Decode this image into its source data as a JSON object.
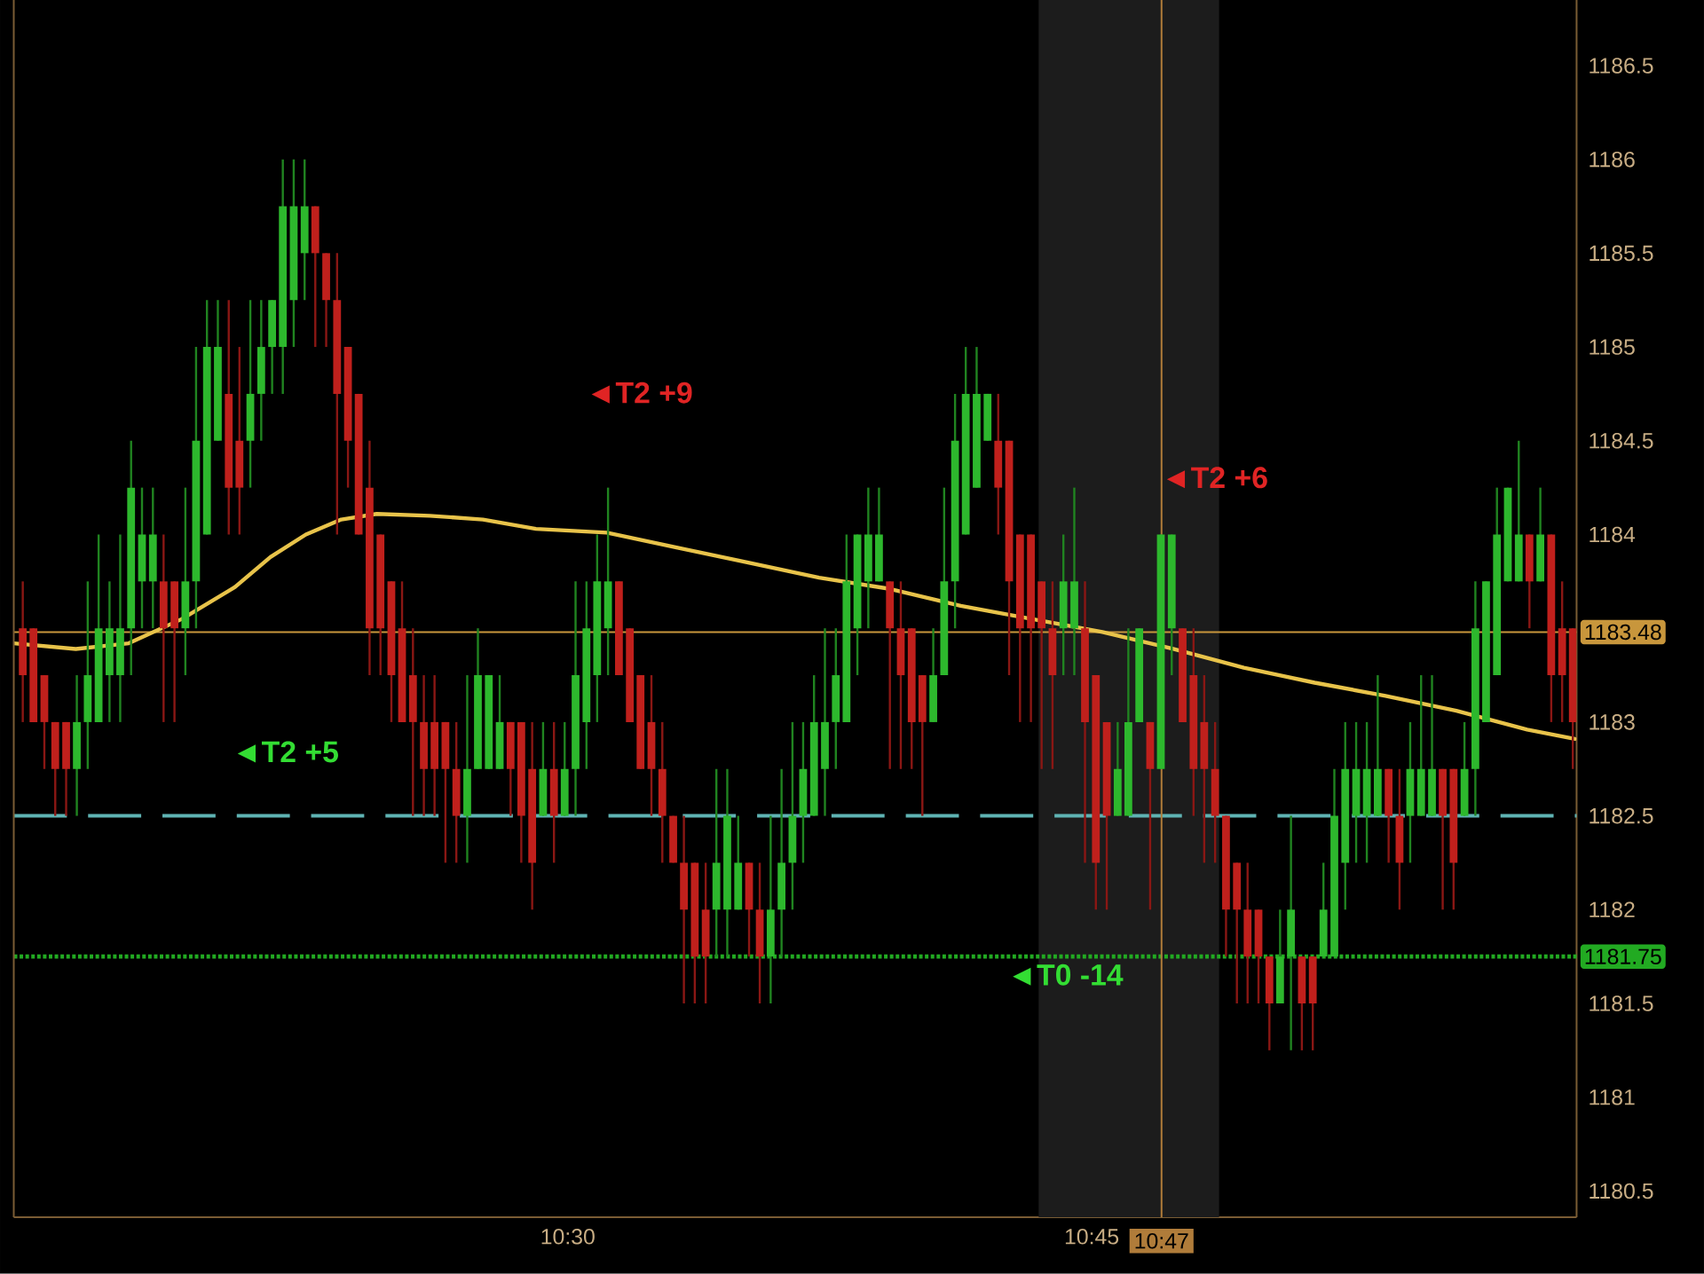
{
  "chart_data": {
    "type": "candlestick",
    "x": [
      10.2399,
      10.245,
      10.2502,
      10.2554,
      10.2606,
      10.2657,
      10.2709,
      10.2761,
      10.2813,
      10.2864,
      10.2916,
      10.2968,
      10.302,
      10.3071,
      10.3123,
      10.3175,
      10.3226,
      10.3278,
      10.333,
      10.3382,
      10.3433,
      10.3485,
      10.3537,
      10.3589,
      10.364,
      10.3692,
      10.3744,
      10.3795,
      10.3847,
      10.3899,
      10.3951,
      10.4002,
      10.4054,
      10.4106,
      10.4158,
      10.4209,
      10.4261,
      10.4313,
      10.4364,
      10.4416,
      10.4468,
      10.452,
      10.4571,
      10.4623,
      10.4675,
      10.4727,
      10.4778,
      10.483,
      10.4882,
      10.4934,
      10.4985,
      10.5037,
      10.5089,
      10.514,
      10.5192,
      10.5244,
      10.5296,
      10.5347,
      10.5399,
      10.5451,
      10.5503,
      10.5554,
      10.5606,
      10.5658,
      10.5709,
      10.5761,
      10.5813,
      10.5865,
      10.5916,
      10.5968,
      10.602,
      10.6072,
      10.6123,
      10.6175,
      10.6227,
      10.6279,
      10.633,
      10.6382,
      10.6434,
      10.6485,
      10.6537,
      10.6589,
      10.6641,
      10.6692,
      10.6744,
      10.6796,
      10.6848,
      10.6899,
      10.6951,
      10.7003,
      10.7054,
      10.7106,
      10.7158,
      10.721,
      10.7261,
      10.7313,
      10.7365,
      10.7417,
      10.7468,
      10.752,
      10.7572,
      10.7624,
      10.7675,
      10.7727,
      10.7779,
      10.783,
      10.7882,
      10.7934,
      10.7986,
      10.8037,
      10.8089,
      10.8141,
      10.8193,
      10.8244,
      10.8296,
      10.8348,
      10.8399,
      10.8451,
      10.8503,
      10.8555,
      10.8606,
      10.8658,
      10.871,
      10.8762,
      10.8813,
      10.8865,
      10.8917,
      10.8969,
      10.902,
      10.9072,
      10.9124,
      10.9175,
      10.9227,
      10.9279,
      10.9331,
      10.9382,
      10.9434,
      10.9486,
      10.9538,
      10.9589,
      10.9641,
      10.9693,
      10.9745,
      10.9796
    ],
    "ohlc": [
      [
        1183.5,
        1183.75,
        1183,
        1183.25
      ],
      [
        1183.5,
        1183.5,
        1183,
        1183
      ],
      [
        1183.25,
        1183.25,
        1182.75,
        1183
      ],
      [
        1183,
        1183,
        1182.5,
        1182.75
      ],
      [
        1183,
        1183,
        1182.5,
        1182.75
      ],
      [
        1182.75,
        1183.25,
        1182.5,
        1183
      ],
      [
        1183,
        1183.75,
        1182.75,
        1183.25
      ],
      [
        1183,
        1184,
        1183,
        1183.5
      ],
      [
        1183.25,
        1183.75,
        1183,
        1183.5
      ],
      [
        1183.25,
        1184,
        1183,
        1183.5
      ],
      [
        1183.5,
        1184.5,
        1183.25,
        1184.25
      ],
      [
        1183.75,
        1184.25,
        1183.5,
        1184
      ],
      [
        1183.75,
        1184.25,
        1183.5,
        1184
      ],
      [
        1183.75,
        1184,
        1183,
        1183.5
      ],
      [
        1183.75,
        1183.75,
        1183,
        1183.5
      ],
      [
        1183.5,
        1184.25,
        1183.25,
        1183.75
      ],
      [
        1183.75,
        1185,
        1183.5,
        1184.5
      ],
      [
        1184,
        1185.25,
        1184,
        1185
      ],
      [
        1184.5,
        1185.25,
        1184.5,
        1185
      ],
      [
        1184.75,
        1185.25,
        1184,
        1184.25
      ],
      [
        1184.5,
        1185,
        1184,
        1184.25
      ],
      [
        1184.5,
        1185.25,
        1184.25,
        1184.75
      ],
      [
        1184.75,
        1185.25,
        1184.5,
        1185
      ],
      [
        1185,
        1185.25,
        1184.75,
        1185.25
      ],
      [
        1185,
        1186,
        1184.75,
        1185.75
      ],
      [
        1185.25,
        1186,
        1185,
        1185.75
      ],
      [
        1185.5,
        1186,
        1185.25,
        1185.75
      ],
      [
        1185.75,
        1185.75,
        1185,
        1185.5
      ],
      [
        1185.5,
        1185.5,
        1185,
        1185.25
      ],
      [
        1185.25,
        1185.5,
        1184,
        1184.75
      ],
      [
        1185,
        1185,
        1184.25,
        1184.5
      ],
      [
        1184.75,
        1184.75,
        1184,
        1184
      ],
      [
        1184.25,
        1184.5,
        1183.25,
        1183.5
      ],
      [
        1184,
        1184,
        1183.25,
        1183.5
      ],
      [
        1183.75,
        1183.75,
        1183,
        1183.25
      ],
      [
        1183.5,
        1183.75,
        1183,
        1183
      ],
      [
        1183.25,
        1183.5,
        1182.5,
        1183
      ],
      [
        1183,
        1183.25,
        1182.5,
        1182.75
      ],
      [
        1183,
        1183.25,
        1182.5,
        1182.75
      ],
      [
        1183,
        1183,
        1182.25,
        1182.75
      ],
      [
        1182.75,
        1183,
        1182.25,
        1182.5
      ],
      [
        1182.5,
        1183.25,
        1182.25,
        1182.75
      ],
      [
        1182.75,
        1183.5,
        1182.75,
        1183.25
      ],
      [
        1182.75,
        1183.25,
        1182.75,
        1183.25
      ],
      [
        1182.75,
        1183.25,
        1182.75,
        1183
      ],
      [
        1183,
        1183,
        1182.5,
        1182.75
      ],
      [
        1183,
        1183,
        1182.25,
        1182.5
      ],
      [
        1182.75,
        1183,
        1182,
        1182.25
      ],
      [
        1182.5,
        1183,
        1182.5,
        1182.75
      ],
      [
        1182.75,
        1183,
        1182.25,
        1182.5
      ],
      [
        1182.5,
        1183,
        1182.5,
        1182.75
      ],
      [
        1182.75,
        1183.75,
        1182.5,
        1183.25
      ],
      [
        1183,
        1183.75,
        1182.75,
        1183.5
      ],
      [
        1183.25,
        1184,
        1183,
        1183.75
      ],
      [
        1183.5,
        1184.25,
        1183.25,
        1183.75
      ],
      [
        1183.75,
        1183.75,
        1183.25,
        1183.25
      ],
      [
        1183.5,
        1183.5,
        1183,
        1183
      ],
      [
        1183.25,
        1183.25,
        1182.75,
        1182.75
      ],
      [
        1183,
        1183.25,
        1182.5,
        1182.75
      ],
      [
        1182.75,
        1183,
        1182.25,
        1182.5
      ],
      [
        1182.5,
        1182.5,
        1182.25,
        1182.25
      ],
      [
        1182.25,
        1182.5,
        1181.5,
        1182
      ],
      [
        1182.25,
        1182.25,
        1181.5,
        1181.75
      ],
      [
        1182,
        1182.25,
        1181.5,
        1181.75
      ],
      [
        1182,
        1182.75,
        1181.75,
        1182.25
      ],
      [
        1182,
        1182.75,
        1181.75,
        1182.5
      ],
      [
        1182,
        1182.5,
        1182,
        1182.25
      ],
      [
        1182.25,
        1182.25,
        1181.75,
        1182
      ],
      [
        1182,
        1182.25,
        1181.5,
        1181.75
      ],
      [
        1181.75,
        1182.5,
        1181.5,
        1182
      ],
      [
        1182,
        1182.75,
        1181.75,
        1182.25
      ],
      [
        1182.25,
        1183,
        1182,
        1182.5
      ],
      [
        1182.5,
        1183,
        1182.25,
        1182.75
      ],
      [
        1182.5,
        1183.25,
        1182.5,
        1183
      ],
      [
        1182.75,
        1183.5,
        1182.5,
        1183
      ],
      [
        1183,
        1183.5,
        1182.75,
        1183.25
      ],
      [
        1183,
        1184,
        1183,
        1183.75
      ],
      [
        1183.5,
        1184,
        1183.25,
        1184
      ],
      [
        1183.75,
        1184.25,
        1183.5,
        1184
      ],
      [
        1183.75,
        1184.25,
        1183.75,
        1184
      ],
      [
        1183.75,
        1183.75,
        1182.75,
        1183.5
      ],
      [
        1183.5,
        1183.75,
        1182.75,
        1183.25
      ],
      [
        1183.5,
        1183.5,
        1182.75,
        1183
      ],
      [
        1183.25,
        1183.25,
        1182.5,
        1183
      ],
      [
        1183,
        1183.5,
        1183,
        1183.25
      ],
      [
        1183.25,
        1184.25,
        1183.25,
        1183.75
      ],
      [
        1183.75,
        1184.75,
        1183.5,
        1184.5
      ],
      [
        1184,
        1185,
        1184,
        1184.75
      ],
      [
        1184.25,
        1185,
        1184.25,
        1184.75
      ],
      [
        1184.5,
        1184.75,
        1184.5,
        1184.75
      ],
      [
        1184.5,
        1184.75,
        1184,
        1184.25
      ],
      [
        1184.5,
        1184.5,
        1183.25,
        1183.75
      ],
      [
        1184,
        1184,
        1183,
        1183.5
      ],
      [
        1184,
        1184,
        1183,
        1183.5
      ],
      [
        1183.75,
        1183.75,
        1182.75,
        1183.5
      ],
      [
        1183.5,
        1183.75,
        1182.75,
        1183.25
      ],
      [
        1183.5,
        1184,
        1183.25,
        1183.75
      ],
      [
        1183.5,
        1184.25,
        1183.25,
        1183.75
      ],
      [
        1183.5,
        1183.75,
        1182.25,
        1183
      ],
      [
        1183.25,
        1183.25,
        1182,
        1182.25
      ],
      [
        1183,
        1183,
        1182,
        1182.5
      ],
      [
        1182.5,
        1183,
        1182.5,
        1182.75
      ],
      [
        1182.5,
        1183.5,
        1182.5,
        1183
      ],
      [
        1183,
        1183.5,
        1183,
        1183.5
      ],
      [
        1183,
        1183,
        1182,
        1182.75
      ],
      [
        1182.75,
        1184,
        1182.75,
        1184
      ],
      [
        1183.5,
        1184,
        1183.25,
        1184
      ],
      [
        1183.5,
        1183.5,
        1183,
        1183
      ],
      [
        1183.25,
        1183.5,
        1182.5,
        1182.75
      ],
      [
        1183,
        1183.25,
        1182.25,
        1182.75
      ],
      [
        1182.75,
        1183,
        1182.25,
        1182.5
      ],
      [
        1182.5,
        1182.5,
        1181.75,
        1182
      ],
      [
        1182.25,
        1182.25,
        1181.5,
        1182
      ],
      [
        1182,
        1182.25,
        1181.5,
        1181.75
      ],
      [
        1182,
        1182,
        1181.5,
        1181.75
      ],
      [
        1181.75,
        1181.75,
        1181.25,
        1181.5
      ],
      [
        1181.5,
        1182,
        1181.5,
        1181.75
      ],
      [
        1181.75,
        1182.5,
        1181.25,
        1182
      ],
      [
        1181.75,
        1181.75,
        1181.25,
        1181.5
      ],
      [
        1181.75,
        1181.75,
        1181.25,
        1181.5
      ],
      [
        1181.75,
        1182.25,
        1181.75,
        1182
      ],
      [
        1181.75,
        1182.75,
        1181.75,
        1182.5
      ],
      [
        1182.25,
        1183,
        1182,
        1182.75
      ],
      [
        1182.5,
        1183,
        1182.25,
        1182.75
      ],
      [
        1182.5,
        1183,
        1182.25,
        1182.75
      ],
      [
        1182.5,
        1183.25,
        1182.5,
        1182.75
      ],
      [
        1182.75,
        1182.75,
        1182.25,
        1182.5
      ],
      [
        1182.5,
        1182.75,
        1182,
        1182.25
      ],
      [
        1182.5,
        1183,
        1182.25,
        1182.75
      ],
      [
        1182.5,
        1183.25,
        1182.5,
        1182.75
      ],
      [
        1182.5,
        1183.25,
        1182.5,
        1182.75
      ],
      [
        1182.75,
        1182.75,
        1182,
        1182.5
      ],
      [
        1182.75,
        1182.75,
        1182,
        1182.25
      ],
      [
        1182.5,
        1183,
        1182.5,
        1182.75
      ],
      [
        1182.75,
        1183.75,
        1182.5,
        1183.5
      ],
      [
        1183,
        1183.75,
        1183,
        1183.75
      ],
      [
        1183.25,
        1184.25,
        1183.25,
        1184
      ],
      [
        1183.75,
        1184.25,
        1183.75,
        1184.25
      ],
      [
        1183.75,
        1184.5,
        1183.75,
        1184
      ],
      [
        1184,
        1184,
        1183.5,
        1183.75
      ],
      [
        1183.75,
        1184.25,
        1183.75,
        1184
      ],
      [
        1184,
        1184,
        1183,
        1183.25
      ],
      [
        1183.5,
        1183.75,
        1183,
        1183.25
      ],
      [
        1183.5,
        1183.5,
        1182.75,
        1183
      ]
    ],
    "colors": [
      "#c0201c",
      "#c0201c",
      "#c0201c",
      "#c0201c",
      "#c0201c",
      "#2db82d",
      "#2db82d",
      "#2db82d",
      "#2db82d",
      "#2db82d",
      "#2db82d",
      "#2db82d",
      "#2db82d",
      "#c0201c",
      "#c0201c",
      "#2db82d",
      "#2db82d",
      "#2db82d",
      "#2db82d",
      "#c0201c",
      "#c0201c",
      "#2db82d",
      "#2db82d",
      "#2db82d",
      "#2db82d",
      "#2db82d",
      "#2db82d",
      "#c0201c",
      "#c0201c",
      "#c0201c",
      "#c0201c",
      "#c0201c",
      "#c0201c",
      "#c0201c",
      "#c0201c",
      "#c0201c",
      "#c0201c",
      "#c0201c",
      "#c0201c",
      "#c0201c",
      "#c0201c",
      "#2db82d",
      "#2db82d",
      "#2db82d",
      "#2db82d",
      "#c0201c",
      "#c0201c",
      "#c0201c",
      "#2db82d",
      "#c0201c",
      "#2db82d",
      "#2db82d",
      "#2db82d",
      "#2db82d",
      "#2db82d",
      "#c0201c",
      "#c0201c",
      "#c0201c",
      "#c0201c",
      "#c0201c",
      "#c0201c",
      "#c0201c",
      "#c0201c",
      "#c0201c",
      "#2db82d",
      "#2db82d",
      "#2db82d",
      "#c0201c",
      "#c0201c",
      "#2db82d",
      "#2db82d",
      "#2db82d",
      "#2db82d",
      "#2db82d",
      "#2db82d",
      "#2db82d",
      "#2db82d",
      "#2db82d",
      "#2db82d",
      "#2db82d",
      "#c0201c",
      "#c0201c",
      "#c0201c",
      "#c0201c",
      "#2db82d",
      "#2db82d",
      "#2db82d",
      "#2db82d",
      "#2db82d",
      "#2db82d",
      "#c0201c",
      "#c0201c",
      "#c0201c",
      "#c0201c",
      "#c0201c",
      "#c0201c",
      "#2db82d",
      "#2db82d",
      "#c0201c",
      "#c0201c",
      "#c0201c",
      "#2db82d",
      "#2db82d",
      "#2db82d",
      "#c0201c",
      "#2db82d",
      "#2db82d",
      "#c0201c",
      "#c0201c",
      "#c0201c",
      "#c0201c",
      "#c0201c",
      "#c0201c",
      "#c0201c",
      "#c0201c",
      "#c0201c",
      "#2db82d",
      "#2db82d",
      "#c0201c",
      "#c0201c",
      "#2db82d",
      "#2db82d",
      "#2db82d",
      "#2db82d",
      "#2db82d",
      "#2db82d",
      "#c0201c",
      "#c0201c",
      "#2db82d",
      "#2db82d",
      "#2db82d",
      "#c0201c",
      "#c0201c",
      "#2db82d",
      "#2db82d",
      "#2db82d",
      "#2db82d",
      "#2db82d",
      "#2db82d",
      "#c0201c",
      "#2db82d",
      "#c0201c",
      "#c0201c",
      "#c0201c"
    ],
    "series": [
      {
        "type": "line",
        "color": "#e8c34a",
        "x": [
          10.2356,
          10.2652,
          10.2905,
          10.3159,
          10.3412,
          10.3581,
          10.375,
          10.3919,
          10.4088,
          10.4341,
          10.4595,
          10.4848,
          10.5186,
          10.5524,
          10.5861,
          10.6199,
          10.6537,
          10.6875,
          10.7213,
          10.7551,
          10.7889,
          10.8226,
          10.8564,
          10.8902,
          10.924,
          10.9578,
          10.9806
        ],
        "values": [
          1183.42,
          1183.39,
          1183.42,
          1183.55,
          1183.72,
          1183.88,
          1184.0,
          1184.08,
          1184.11,
          1184.1,
          1184.08,
          1184.03,
          1184.01,
          1183.93,
          1183.85,
          1183.77,
          1183.71,
          1183.62,
          1183.55,
          1183.48,
          1183.39,
          1183.29,
          1183.21,
          1183.14,
          1183.06,
          1182.96,
          1182.91
        ]
      }
    ],
    "xlim": [
      10.2356,
      10.9814
    ],
    "xticks": [
      {
        "value": 10.5,
        "label": "10:30"
      },
      {
        "value": 10.75,
        "label": "10:45"
      },
      {
        "value": 10.783333,
        "label": "10:47"
      }
    ],
    "ylim": [
      1180.36,
      1186.85
    ],
    "yticks": [
      1180.5,
      1181,
      1181.5,
      1182,
      1182.5,
      1183,
      1184,
      1184.5,
      1185,
      1185.5,
      1186,
      1186.5
    ],
    "ref_lines": [
      {
        "axis": "y",
        "value": 1183.48,
        "label": "1183.48",
        "color": "#c8963c",
        "line_style": "solid"
      },
      {
        "axis": "y",
        "value": 1182.5,
        "color": "#5fb3b3",
        "line_style": "dashed"
      },
      {
        "axis": "y",
        "value": 1181.75,
        "label": "1181.75",
        "color": "#22aa22",
        "line_style": "dotted"
      },
      {
        "axis": "x",
        "value": 10.783333,
        "color": "#b07c3a",
        "line_style": "solid"
      }
    ],
    "bands": [
      {
        "axis": "x",
        "from": 10.7247,
        "to": 10.8108,
        "color": "#1c1c1c"
      }
    ],
    "annotations": [
      "◄T2 +9",
      "◄T2 +6",
      "◄T2 +5",
      "◄T0 -14"
    ]
  }
}
